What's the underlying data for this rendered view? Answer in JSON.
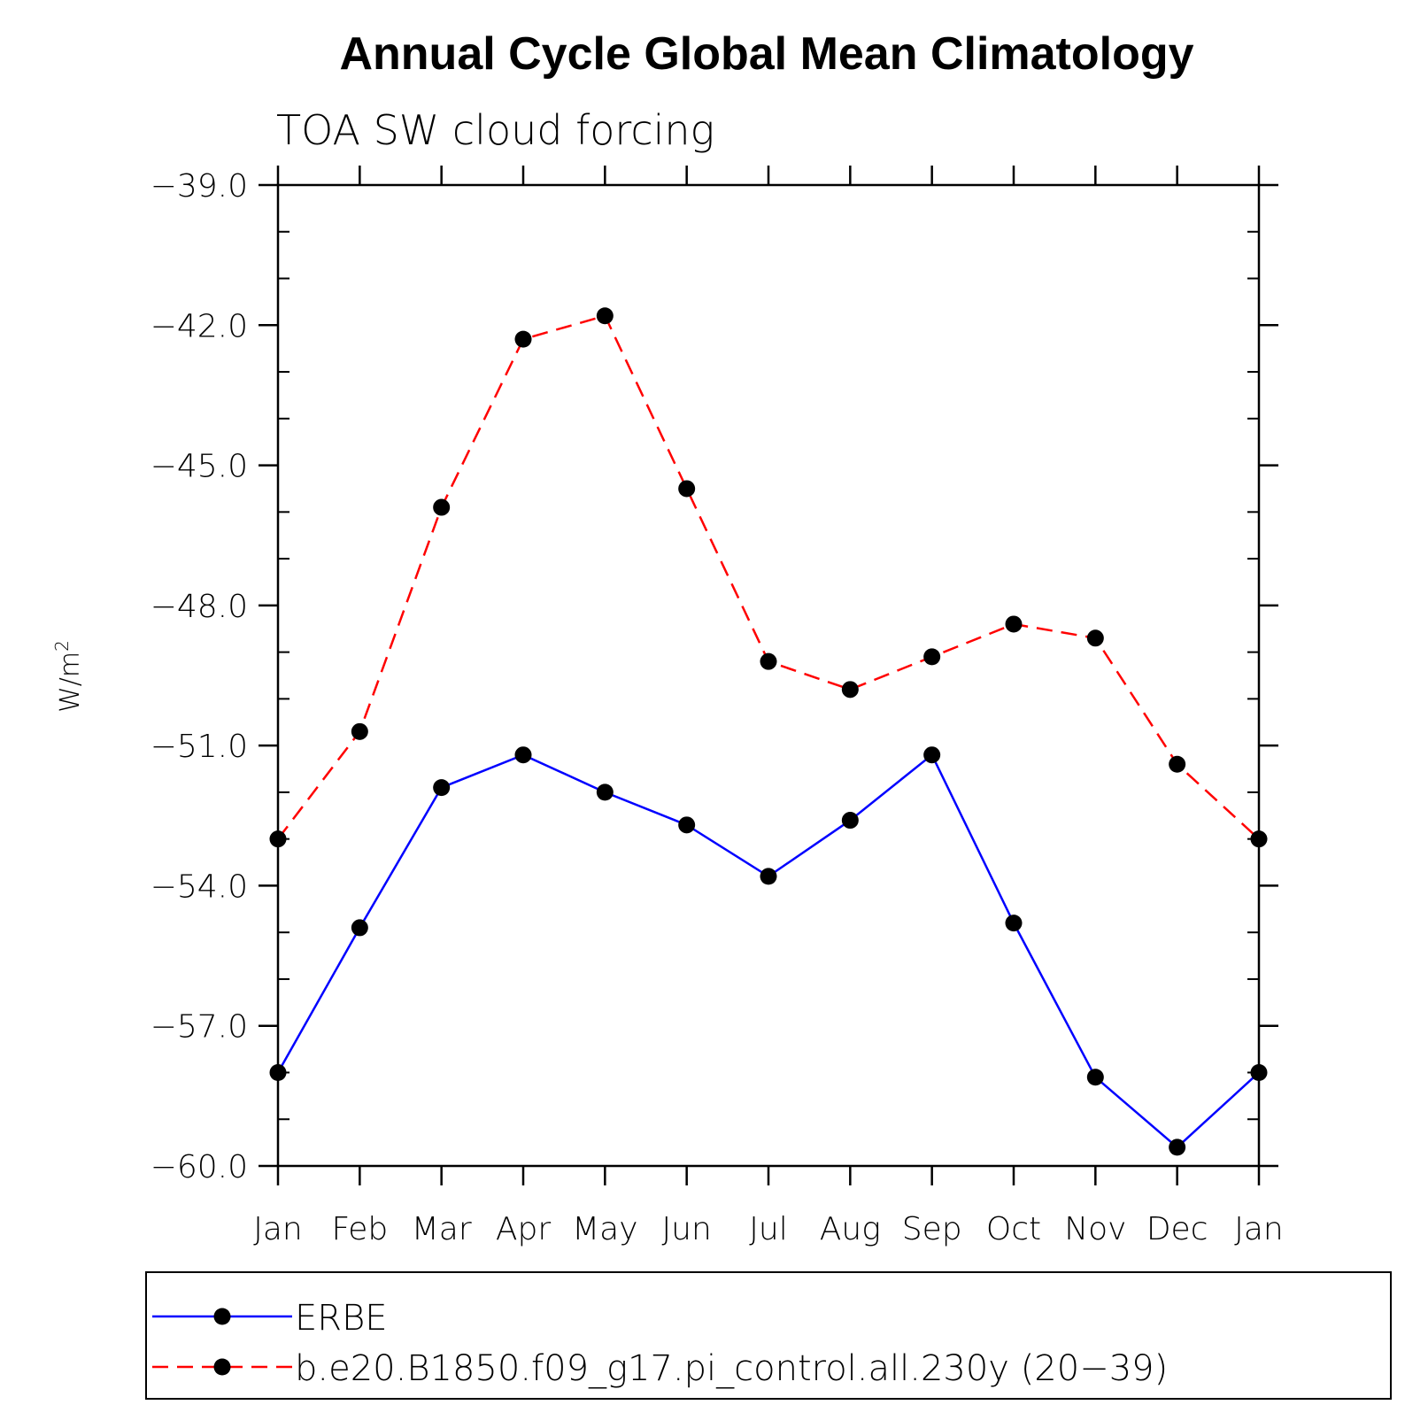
{
  "chart_data": {
    "type": "line",
    "title": "Annual Cycle Global Mean Climatology",
    "subtitle": "TOA SW cloud forcing",
    "ylabel": "W/m",
    "ylabel_sup": "2",
    "xlabel": "",
    "categories": [
      "Jan",
      "Feb",
      "Mar",
      "Apr",
      "May",
      "Jun",
      "Jul",
      "Aug",
      "Sep",
      "Oct",
      "Nov",
      "Dec",
      "Jan"
    ],
    "ylim": [
      -60.0,
      -39.0
    ],
    "yticks": [
      "-39.0",
      "-42.0",
      "-45.0",
      "-48.0",
      "-51.0",
      "-54.0",
      "-57.0",
      "-60.0"
    ],
    "ytick_values": [
      -39,
      -42,
      -45,
      -48,
      -51,
      -54,
      -57,
      -60
    ],
    "grid": false,
    "legend_position": "bottom",
    "series": [
      {
        "name": "ERBE",
        "color": "#0000ff",
        "style": "solid",
        "marker": "dot",
        "values": [
          -58.0,
          -54.9,
          -51.9,
          -51.2,
          -52.0,
          -52.7,
          -53.8,
          -52.6,
          -51.2,
          -54.8,
          -58.1,
          -59.6,
          -58.0
        ]
      },
      {
        "name": "b.e20.B1850.f09_g17.pi_control.all.230y (20−39)",
        "color": "#ff0000",
        "style": "dashed",
        "marker": "dot",
        "values": [
          -53.0,
          -50.7,
          -45.9,
          -42.3,
          -41.8,
          -45.5,
          -49.2,
          -49.8,
          -49.1,
          -48.4,
          -48.7,
          -51.4,
          -53.0
        ]
      }
    ]
  }
}
